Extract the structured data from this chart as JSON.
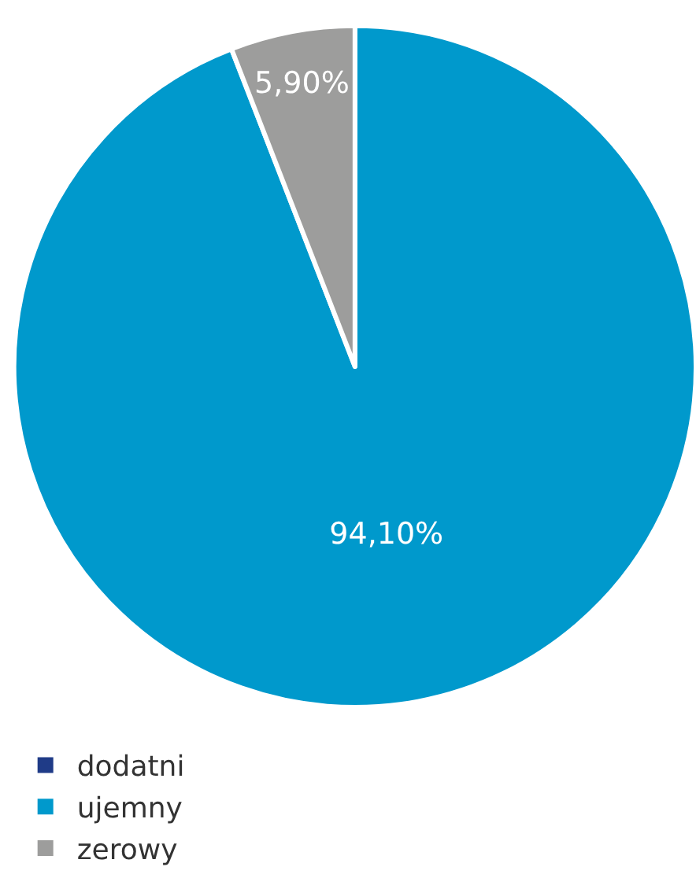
{
  "chart_data": {
    "type": "pie",
    "categories": [
      "dodatni",
      "ujemny",
      "zerowy"
    ],
    "values": [
      0,
      94.1,
      5.9
    ],
    "colors": [
      "#1f3b87",
      "#0099cc",
      "#9d9d9c"
    ],
    "value_labels": [
      null,
      "94,10%",
      "5,90%"
    ],
    "legend": "bottom left"
  }
}
